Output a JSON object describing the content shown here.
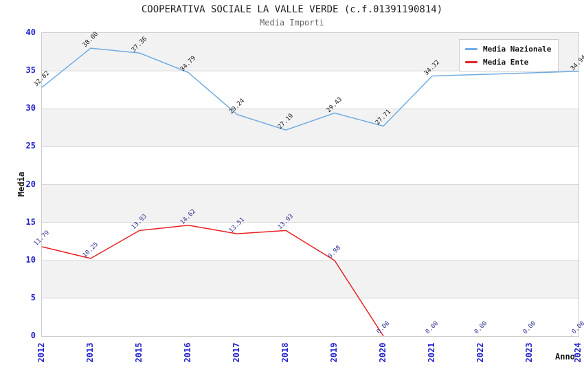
{
  "chart_data": {
    "type": "line",
    "title": "COOPERATIVA SOCIALE LA VALLE VERDE (c.f.01391190814)",
    "subtitle": "Media Importi",
    "xlabel": "Anno",
    "ylabel": "Media",
    "categories": [
      "2012",
      "2013",
      "2015",
      "2016",
      "2017",
      "2018",
      "2019",
      "2020",
      "2021",
      "2022",
      "2023",
      "2024"
    ],
    "series": [
      {
        "name": "Media Nazionale",
        "color": "#6FACE3",
        "label_color": "#1a1a1a",
        "values": [
          32.82,
          38.0,
          37.36,
          34.79,
          29.24,
          27.19,
          29.43,
          27.71,
          34.32,
          null,
          null,
          34.94
        ]
      },
      {
        "name": "Media Ente",
        "color": "#E62222",
        "label_color": "#333390",
        "values": [
          11.79,
          10.25,
          13.93,
          14.62,
          13.51,
          13.93,
          9.98,
          0.0,
          0.0,
          0.0,
          0.0,
          0.0
        ]
      }
    ],
    "ylim": [
      0,
      40
    ],
    "y_ticks": [
      0,
      5,
      10,
      15,
      20,
      25,
      30,
      35,
      40
    ],
    "grid": true,
    "legend_position": "top-right",
    "colors": {
      "tick_label": "#2222cc",
      "grid_line": "#d9d9d9",
      "band_fill": "#f2f2f2",
      "plot_border": "#cccccc",
      "title": "#222222",
      "subtitle": "#666666"
    }
  }
}
